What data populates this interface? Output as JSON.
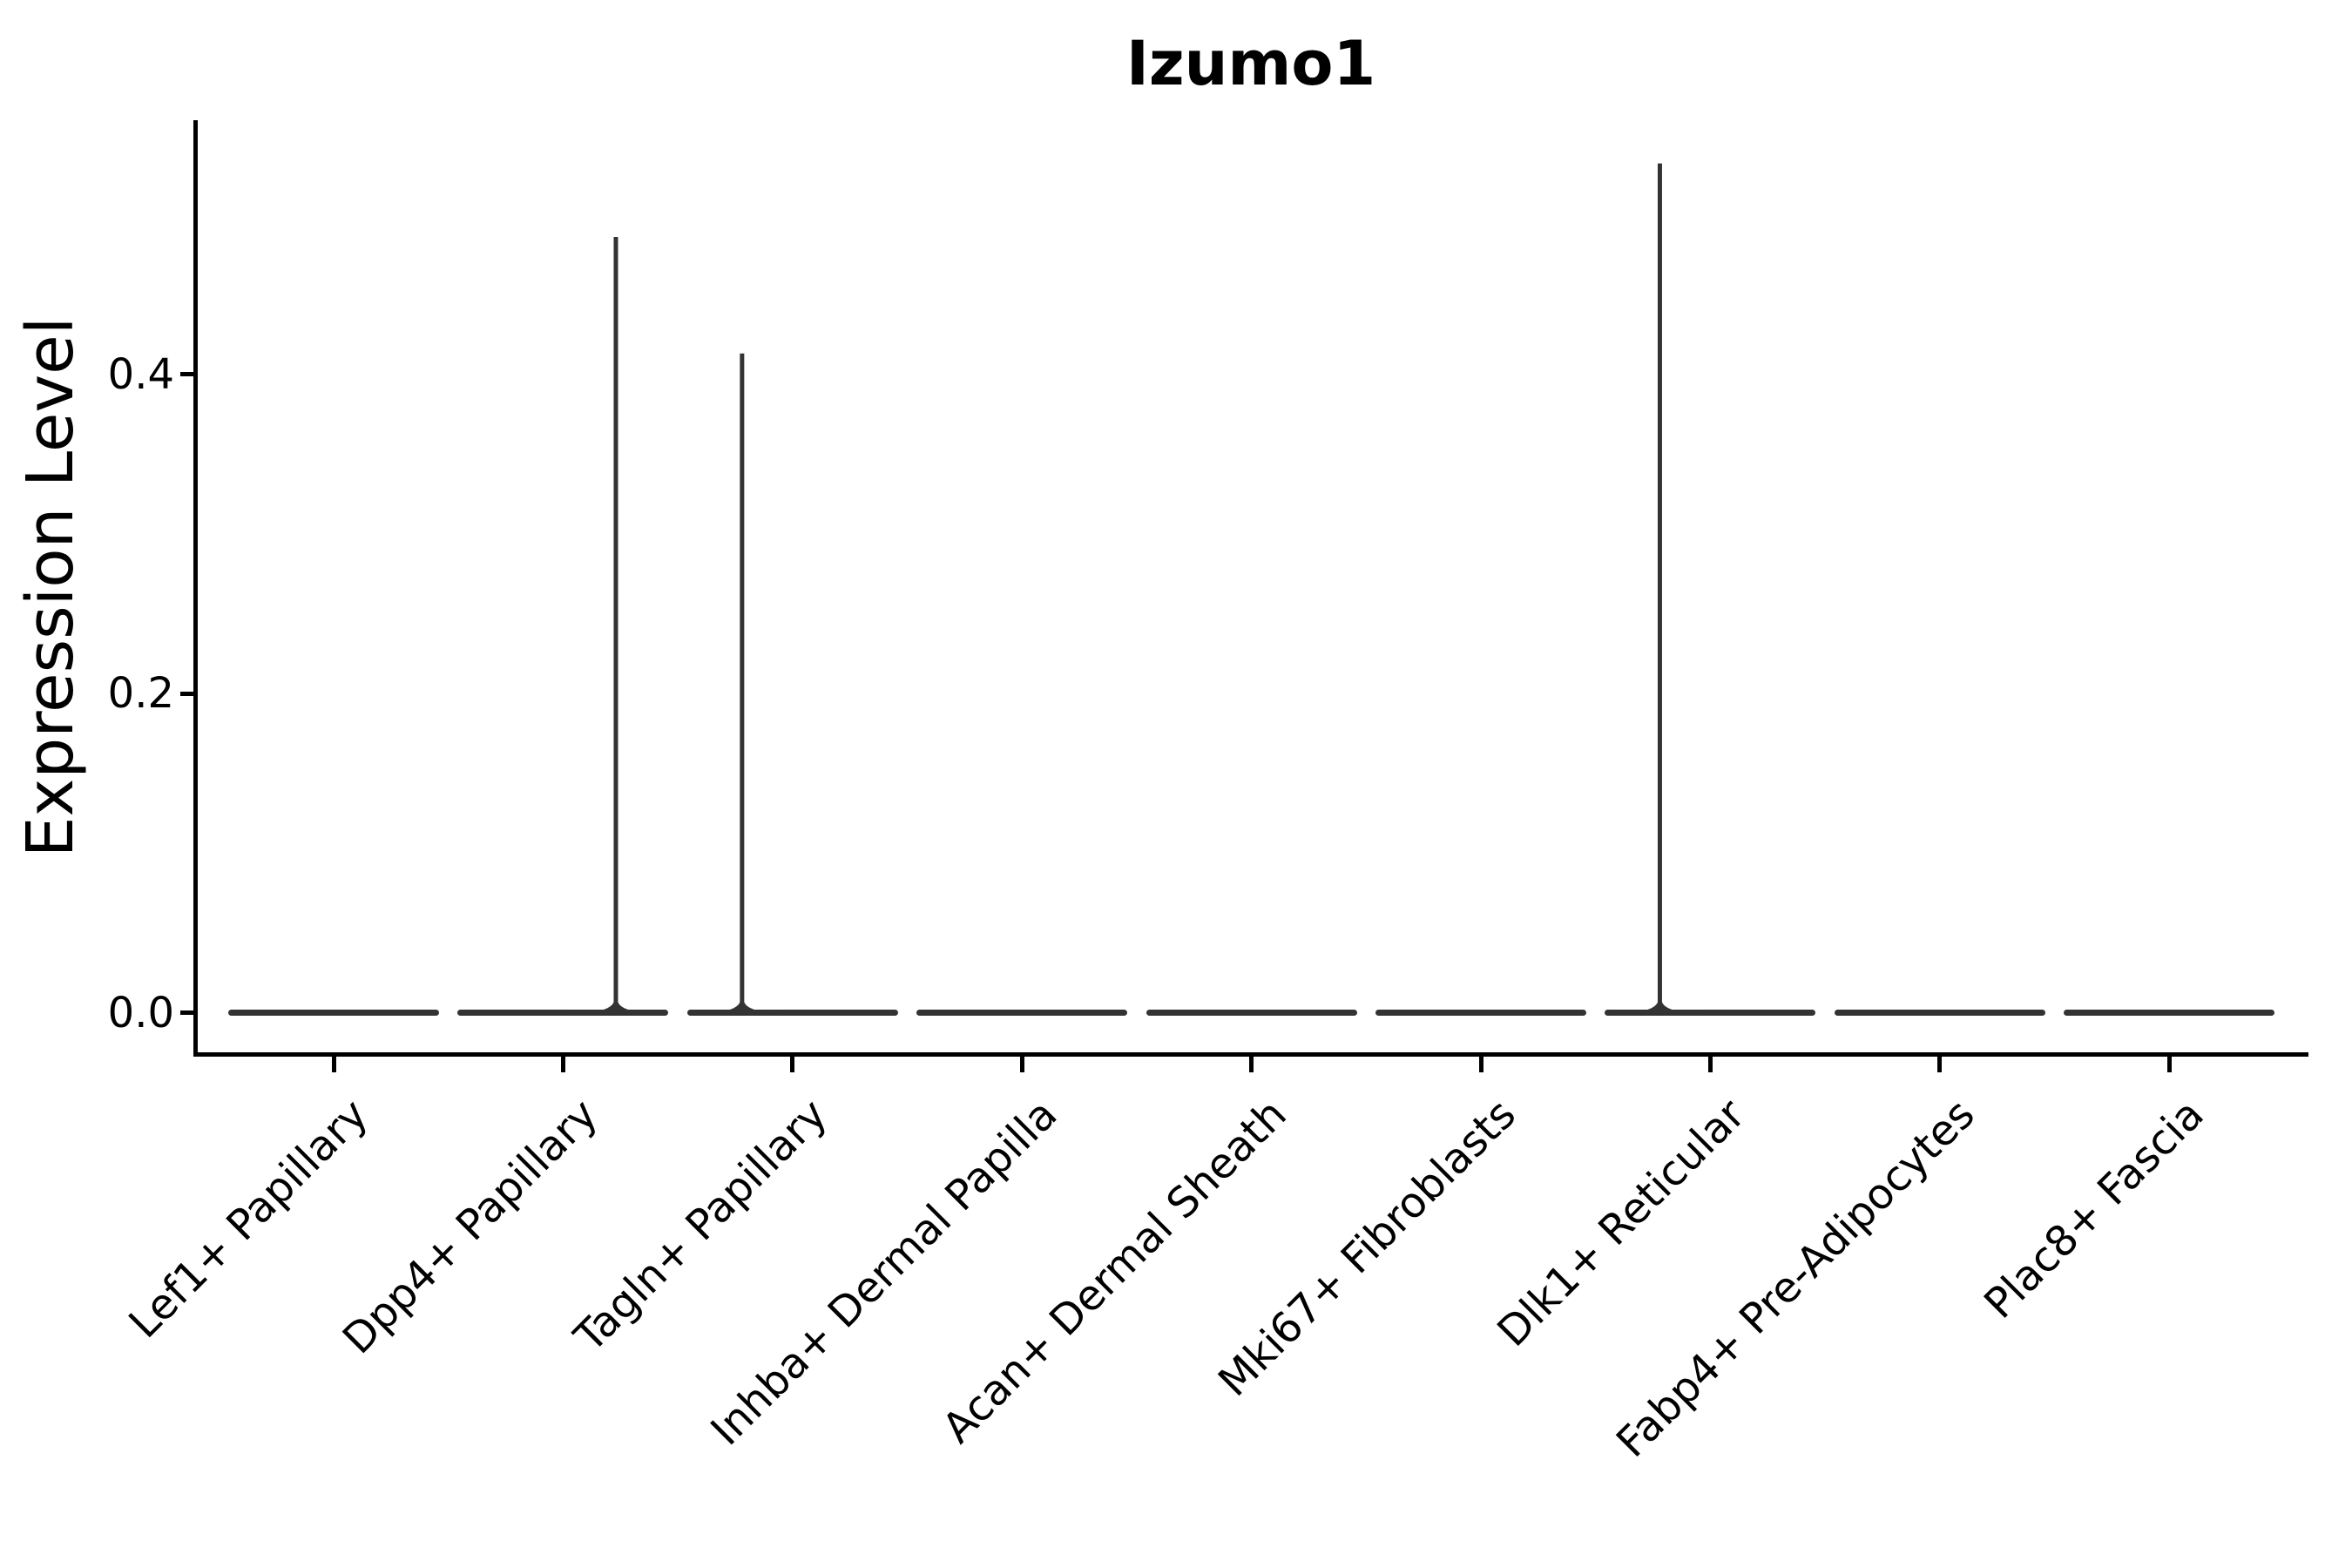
{
  "title": "Izumo1",
  "y_axis": {
    "label": "Expression Level",
    "tick_labels": [
      "0.0",
      "0.2",
      "0.4"
    ]
  },
  "x_axis": {
    "tick_labels": [
      "Lef1+ Papillary",
      "Dpp4+ Papillary",
      "Tagln+ Papillary",
      "Inhba+ Dermal Papilla",
      "Acan+ Dermal Sheath",
      "Mki67+ Fibroblasts",
      "Dlk1+ Reticular",
      "Fabp4+ Pre-Adipocytes",
      "Plac8+ Fascia"
    ]
  },
  "colors": {
    "ink": "#000000",
    "violin": "#333333",
    "background": "#ffffff"
  },
  "chart_data": {
    "type": "violin",
    "title": "Izumo1",
    "xlabel": "",
    "ylabel": "Expression Level",
    "grid": false,
    "legend": false,
    "ylim": [
      -0.026,
      0.558
    ],
    "yticks": [
      0.0,
      0.2,
      0.4
    ],
    "categories": [
      "Lef1+ Papillary",
      "Dpp4+ Papillary",
      "Tagln+ Papillary",
      "Inhba+ Dermal Papilla",
      "Acan+ Dermal Sheath",
      "Mki67+ Fibroblasts",
      "Dlk1+ Reticular",
      "Fabp4+ Pre-Adipocytes",
      "Plac8+ Fascia"
    ],
    "series": [
      {
        "category": "Lef1+ Papillary",
        "shape": "flat_at_zero",
        "max_expression": 0.0
      },
      {
        "category": "Dpp4+ Papillary",
        "shape": "flat_with_spike",
        "max_expression": 0.486,
        "spike_offset_frac": 0.23
      },
      {
        "category": "Tagln+ Papillary",
        "shape": "flat_with_spike",
        "max_expression": 0.413,
        "spike_offset_frac": -0.22
      },
      {
        "category": "Inhba+ Dermal Papilla",
        "shape": "flat_at_zero",
        "max_expression": 0.0
      },
      {
        "category": "Acan+ Dermal Sheath",
        "shape": "flat_at_zero",
        "max_expression": 0.0
      },
      {
        "category": "Mki67+ Fibroblasts",
        "shape": "flat_at_zero",
        "max_expression": 0.0
      },
      {
        "category": "Dlk1+ Reticular",
        "shape": "flat_with_spike",
        "max_expression": 0.532,
        "spike_offset_frac": -0.22
      },
      {
        "category": "Fabp4+ Pre-Adipocytes",
        "shape": "flat_at_zero",
        "max_expression": 0.0
      },
      {
        "category": "Plac8+ Fascia",
        "shape": "flat_at_zero",
        "max_expression": 0.0
      }
    ]
  }
}
